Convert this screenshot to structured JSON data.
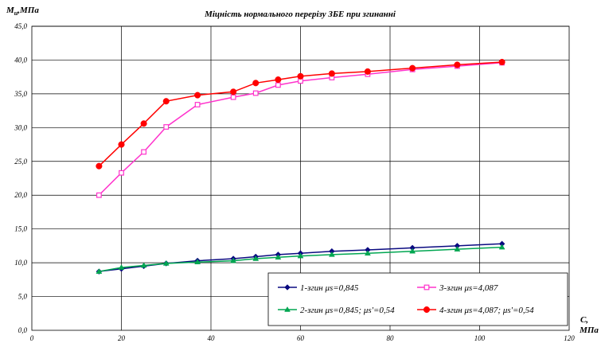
{
  "chart_data": {
    "type": "line",
    "title": "Міцність нормального перерізу ЗБЕ при згинанні",
    "ylabel": "M",
    "ylabel_sub": "u",
    "ylabel_unit": ",МПа",
    "xlabel": "C,",
    "xlabel_unit": "МПа",
    "xlim": [
      0,
      120
    ],
    "ylim": [
      0,
      45
    ],
    "xticks": [
      0,
      20,
      40,
      60,
      80,
      100,
      120
    ],
    "yticks": [
      0,
      5,
      10,
      15,
      20,
      25,
      30,
      35,
      40,
      45
    ],
    "grid": true,
    "legend_position": "bottom-right",
    "series": [
      {
        "name": "1-згин μs=0,845",
        "color": "#0a0a80",
        "marker": "diamond",
        "x": [
          15,
          20,
          25,
          30,
          37,
          45,
          50,
          55,
          60,
          67,
          75,
          85,
          95,
          105
        ],
        "y": [
          8.7,
          9.1,
          9.5,
          9.9,
          10.3,
          10.6,
          10.9,
          11.2,
          11.4,
          11.7,
          11.9,
          12.2,
          12.5,
          12.8
        ]
      },
      {
        "name": "2-згин μs=0,845; μs'=0,54",
        "color": "#00a651",
        "marker": "triangle",
        "x": [
          15,
          20,
          25,
          30,
          37,
          45,
          50,
          55,
          60,
          67,
          75,
          85,
          95,
          105
        ],
        "y": [
          8.7,
          9.3,
          9.6,
          9.9,
          10.1,
          10.3,
          10.6,
          10.8,
          11.0,
          11.2,
          11.4,
          11.7,
          12.0,
          12.3
        ]
      },
      {
        "name": "3-згин μs=4,087",
        "color": "#ff33cc",
        "marker": "square",
        "x": [
          15,
          20,
          25,
          30,
          37,
          45,
          50,
          55,
          60,
          67,
          75,
          85,
          95,
          105
        ],
        "y": [
          20.0,
          23.3,
          26.4,
          30.1,
          33.4,
          34.5,
          35.1,
          36.3,
          36.9,
          37.4,
          37.9,
          38.6,
          39.1,
          39.6
        ]
      },
      {
        "name": "4-згин μs=4,087; μs'=0,54",
        "color": "#ff0000",
        "marker": "circle",
        "x": [
          15,
          20,
          25,
          30,
          37,
          45,
          50,
          55,
          60,
          67,
          75,
          85,
          95,
          105
        ],
        "y": [
          24.3,
          27.5,
          30.6,
          33.9,
          34.8,
          35.3,
          36.6,
          37.1,
          37.6,
          38.0,
          38.3,
          38.8,
          39.3,
          39.7
        ]
      }
    ]
  }
}
